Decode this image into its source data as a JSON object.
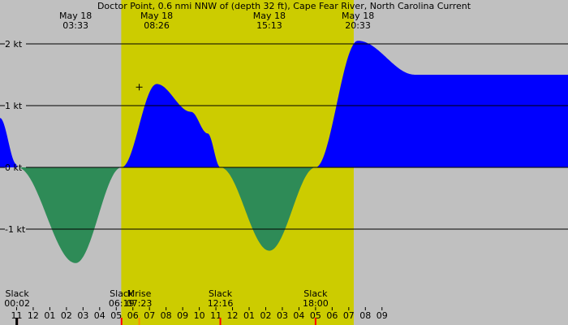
{
  "chart_data": {
    "type": "area",
    "title": "Doctor Point, 0.6 nmi NNW of (depth 32 ft), Cape Fear River, North Carolina Current",
    "xlabel": "",
    "ylabel": "",
    "x_unit": "hour of day, May 18 (24+ = May 19)",
    "xlim": [
      -1.0,
      33.2
    ],
    "ylim": [
      -2.6,
      2.0
    ],
    "y_ticks": [
      {
        "value": 2,
        "label": "2 kt"
      },
      {
        "value": 1,
        "label": "1 kt"
      },
      {
        "value": 0,
        "label": "0 kt"
      },
      {
        "value": -1,
        "label": "-1 kt"
      }
    ],
    "grid": "horizontal",
    "daylight": {
      "start": 6.3,
      "end": 20.3
    },
    "colors": {
      "flood": "#0000ff",
      "ebb": "#2e8b57",
      "night_bg": "#c0c0c0",
      "day_bg": "#cccc00",
      "grid": "#000000",
      "slack_tick": "#ff0000",
      "moonrise_tick": "#ff8c00"
    },
    "series": [
      {
        "x": [
          -1.0,
          0.0,
          0.033,
          3.55,
          6.317,
          8.433,
          10.5,
          11.5,
          12.267,
          15.217,
          18.0,
          20.55,
          24.0
        ],
        "values": [
          0.8,
          0.05,
          0.0,
          -1.55,
          0.0,
          1.35,
          0.9,
          0.55,
          0.0,
          -1.35,
          0.0,
          2.05,
          1.5
        ]
      }
    ],
    "events_top": [
      {
        "date": "May 18",
        "time": "03:33",
        "x": 3.55
      },
      {
        "date": "May 18",
        "time": "08:26",
        "x": 8.433
      },
      {
        "date": "May 18",
        "time": "15:13",
        "x": 15.217
      },
      {
        "date": "May 18",
        "time": "20:33",
        "x": 20.55
      }
    ],
    "events_bottom": [
      {
        "label": "Slack",
        "time": "00:02",
        "x": 0.033,
        "kind": "slack"
      },
      {
        "label": "Slack",
        "time": "06:19",
        "x": 6.317,
        "kind": "slack"
      },
      {
        "label": "Mrise",
        "time": "07:23",
        "x": 7.383,
        "kind": "moonrise"
      },
      {
        "label": "Slack",
        "time": "12:16",
        "x": 12.267,
        "kind": "slack"
      },
      {
        "label": "Slack",
        "time": "18:00",
        "x": 18.0,
        "kind": "slack"
      }
    ],
    "moon_marker": {
      "x": 7.383,
      "y": 1.3
    },
    "x_tick_labels": [
      "11",
      "12",
      "01",
      "02",
      "03",
      "04",
      "05",
      "06",
      "07",
      "08",
      "09",
      "10",
      "11",
      "12",
      "01",
      "02",
      "03",
      "04",
      "05",
      "06",
      "07",
      "08",
      "09"
    ]
  }
}
